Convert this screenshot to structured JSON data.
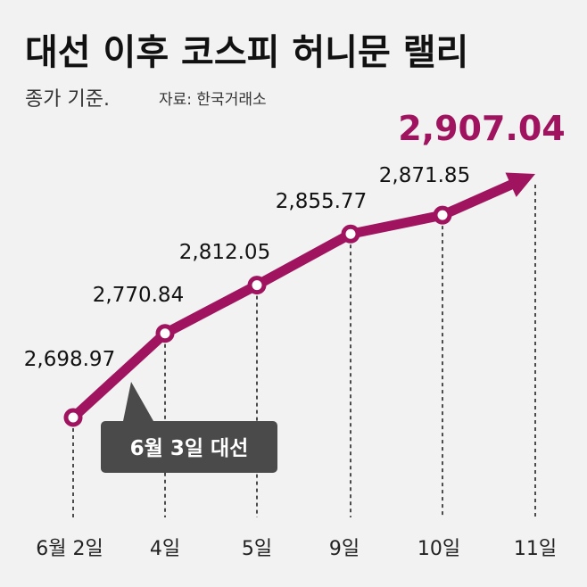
{
  "title": "대선 이후 코스피 허니문 랠리",
  "subtitle": "종가 기준.",
  "source": "자료: 한국거래소",
  "annotation": "6월 3일 대선",
  "colors": {
    "line": "#a0145f",
    "background": "#f2f2f2",
    "callout": "#4a4a4a"
  },
  "chart_data": {
    "type": "line",
    "categories": [
      "6월 2일",
      "4일",
      "5일",
      "9일",
      "10일",
      "11일"
    ],
    "values": [
      2698.97,
      2770.84,
      2812.05,
      2855.77,
      2871.85,
      2907.04
    ],
    "value_labels": [
      "2,698.97",
      "2,770.84",
      "2,812.05",
      "2,855.77",
      "2,871.85",
      "2,907.04"
    ],
    "title": "대선 이후 코스피 허니문 랠리",
    "ylim": [
      2698.97,
      2907.04
    ],
    "grid": false,
    "last_point_marker": "arrow"
  }
}
